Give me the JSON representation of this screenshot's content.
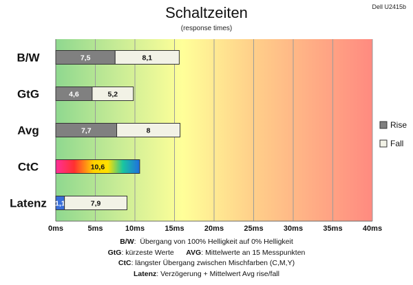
{
  "chart_data": {
    "type": "bar",
    "orientation": "horizontal",
    "stacked": true,
    "title": "Schaltzeiten",
    "subtitle": "(response times)",
    "model": "Dell U2415b",
    "categories": [
      "B/W",
      "GtG",
      "Avg",
      "CtC",
      "Latenz"
    ],
    "series": [
      {
        "name": "Rise",
        "values": [
          7.5,
          4.6,
          7.7,
          10.6,
          1.1
        ],
        "labels": [
          "7,5",
          "4,6",
          "7,7",
          "10,6",
          "1,1"
        ],
        "color": "#808080"
      },
      {
        "name": "Fall",
        "values": [
          8.1,
          5.2,
          8.0,
          0,
          7.9
        ],
        "labels": [
          "8,1",
          "5,2",
          "8",
          "",
          "7,9"
        ],
        "color": "#f2f2e6"
      }
    ],
    "special_fills": {
      "CtC": "rainbow",
      "Latenz": "#3a6fd8"
    },
    "xlim": [
      0,
      40
    ],
    "xticks": [
      0,
      5,
      10,
      15,
      20,
      25,
      30,
      35,
      40
    ],
    "xtick_labels": [
      "0ms",
      "5ms",
      "10ms",
      "15ms",
      "20ms",
      "25ms",
      "30ms",
      "35ms",
      "40ms"
    ],
    "grid": true,
    "background": "gradient green-yellow-red",
    "legend": "right"
  },
  "notes": [
    {
      "key": "B/W",
      "text": "Übergang von 100% Helligkeit auf 0% Helligkeit"
    },
    {
      "key": "GtG",
      "text": "kürzeste Werte",
      "key2": "AVG",
      "text2": "Mittelwerte an 15 Messpunkten"
    },
    {
      "key": "CtC",
      "text": "längster Übergang zwischen Mischfarben (C,M,Y)"
    },
    {
      "key": "Latenz",
      "text": "Verzögerung + Mittelwert Avg rise/fall"
    }
  ]
}
